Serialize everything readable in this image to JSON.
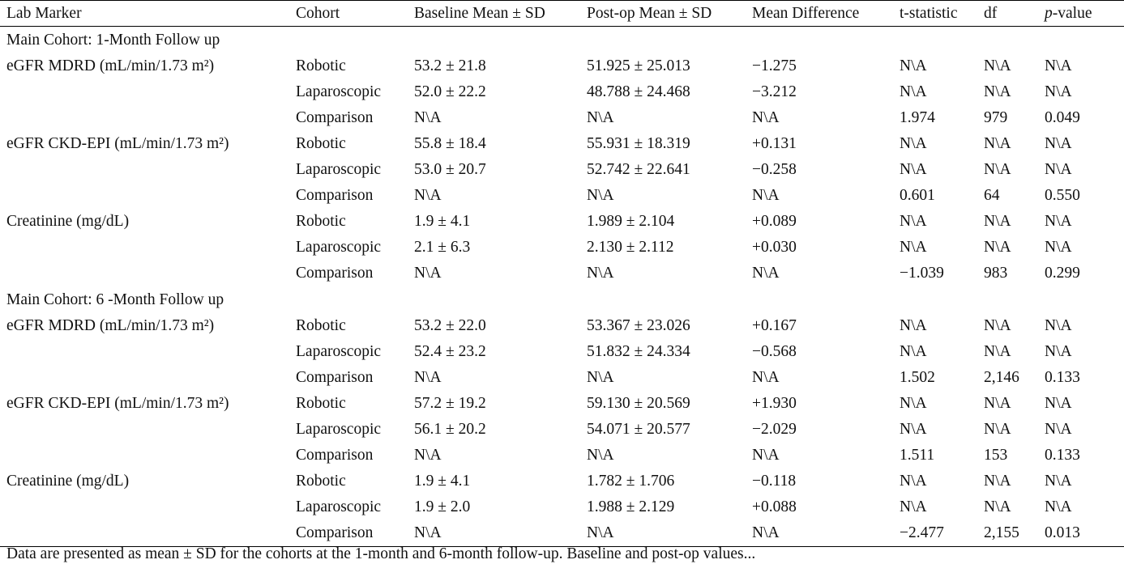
{
  "header": {
    "lab_marker": "Lab Marker",
    "cohort": "Cohort",
    "baseline": "Baseline Mean ± SD",
    "postop": "Post-op Mean ± SD",
    "mean_diff": "Mean Difference",
    "t_stat": "t-statistic",
    "df": "df",
    "p_prefix": "p",
    "p_suffix": "-value"
  },
  "sections": [
    {
      "title": "Main Cohort: 1-Month Follow up",
      "rows": [
        {
          "marker": "eGFR MDRD (mL/min/1.73 m²)",
          "cohort": "Robotic",
          "baseline": "53.2 ± 21.8",
          "postop": "51.925 ± 25.013",
          "diff": "−1.275",
          "t": "N\\A",
          "df": "N\\A",
          "p": "N\\A"
        },
        {
          "marker": "",
          "cohort": "Laparoscopic",
          "baseline": "52.0 ± 22.2",
          "postop": "48.788 ± 24.468",
          "diff": "−3.212",
          "t": "N\\A",
          "df": "N\\A",
          "p": "N\\A"
        },
        {
          "marker": "",
          "cohort": "Comparison",
          "baseline": "N\\A",
          "postop": "N\\A",
          "diff": "N\\A",
          "t": "1.974",
          "df": "979",
          "p": "0.049"
        },
        {
          "marker": "eGFR CKD-EPI (mL/min/1.73 m²)",
          "cohort": "Robotic",
          "baseline": "55.8 ± 18.4",
          "postop": "55.931 ± 18.319",
          "diff": "+0.131",
          "t": "N\\A",
          "df": "N\\A",
          "p": "N\\A"
        },
        {
          "marker": "",
          "cohort": "Laparoscopic",
          "baseline": "53.0 ± 20.7",
          "postop": "52.742 ± 22.641",
          "diff": "−0.258",
          "t": "N\\A",
          "df": "N\\A",
          "p": "N\\A"
        },
        {
          "marker": "",
          "cohort": "Comparison",
          "baseline": "N\\A",
          "postop": "N\\A",
          "diff": "N\\A",
          "t": "0.601",
          "df": "64",
          "p": "0.550"
        },
        {
          "marker": "Creatinine (mg/dL)",
          "cohort": "Robotic",
          "baseline": "1.9 ± 4.1",
          "postop": "1.989 ± 2.104",
          "diff": "+0.089",
          "t": "N\\A",
          "df": "N\\A",
          "p": "N\\A"
        },
        {
          "marker": "",
          "cohort": "Laparoscopic",
          "baseline": "2.1 ± 6.3",
          "postop": "2.130 ± 2.112",
          "diff": "+0.030",
          "t": "N\\A",
          "df": "N\\A",
          "p": "N\\A"
        },
        {
          "marker": "",
          "cohort": "Comparison",
          "baseline": "N\\A",
          "postop": "N\\A",
          "diff": "N\\A",
          "t": "−1.039",
          "df": "983",
          "p": "0.299"
        }
      ]
    },
    {
      "title": "Main Cohort: 6 -Month Follow up",
      "rows": [
        {
          "marker": "eGFR MDRD (mL/min/1.73 m²)",
          "cohort": "Robotic",
          "baseline": "53.2 ± 22.0",
          "postop": "53.367 ± 23.026",
          "diff": "+0.167",
          "t": "N\\A",
          "df": "N\\A",
          "p": "N\\A"
        },
        {
          "marker": "",
          "cohort": "Laparoscopic",
          "baseline": "52.4 ± 23.2",
          "postop": "51.832 ± 24.334",
          "diff": "−0.568",
          "t": "N\\A",
          "df": "N\\A",
          "p": "N\\A"
        },
        {
          "marker": "",
          "cohort": "Comparison",
          "baseline": "N\\A",
          "postop": "N\\A",
          "diff": "N\\A",
          "t": "1.502",
          "df": "2,146",
          "p": "0.133"
        },
        {
          "marker": "eGFR CKD-EPI (mL/min/1.73 m²)",
          "cohort": "Robotic",
          "baseline": "57.2 ± 19.2",
          "postop": "59.130 ± 20.569",
          "diff": "+1.930",
          "t": "N\\A",
          "df": "N\\A",
          "p": "N\\A"
        },
        {
          "marker": "",
          "cohort": "Laparoscopic",
          "baseline": "56.1 ± 20.2",
          "postop": "54.071 ± 20.577",
          "diff": "−2.029",
          "t": "N\\A",
          "df": "N\\A",
          "p": "N\\A"
        },
        {
          "marker": "",
          "cohort": "Comparison",
          "baseline": "N\\A",
          "postop": "N\\A",
          "diff": "N\\A",
          "t": "1.511",
          "df": "153",
          "p": "0.133"
        },
        {
          "marker": "Creatinine (mg/dL)",
          "cohort": "Robotic",
          "baseline": "1.9 ± 4.1",
          "postop": "1.782 ± 1.706",
          "diff": "−0.118",
          "t": "N\\A",
          "df": "N\\A",
          "p": "N\\A"
        },
        {
          "marker": "",
          "cohort": "Laparoscopic",
          "baseline": "1.9 ± 2.0",
          "postop": "1.988 ± 2.129",
          "diff": "+0.088",
          "t": "N\\A",
          "df": "N\\A",
          "p": "N\\A"
        },
        {
          "marker": "",
          "cohort": "Comparison",
          "baseline": "N\\A",
          "postop": "N\\A",
          "diff": "N\\A",
          "t": "−2.477",
          "df": "2,155",
          "p": "0.013"
        }
      ]
    }
  ],
  "footnote": "Data are presented as mean ± SD for the cohorts at the 1-month and 6-month follow-up. Baseline and post-op values..."
}
